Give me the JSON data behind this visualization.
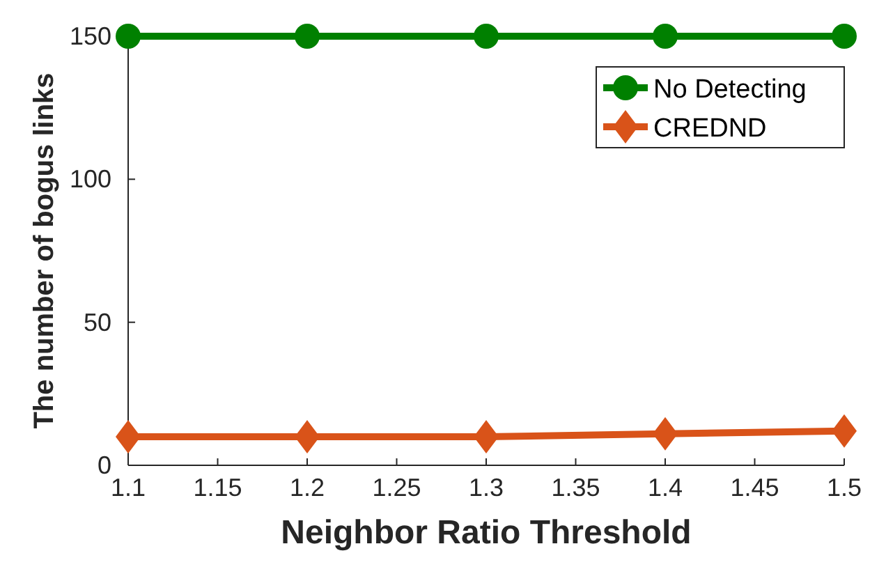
{
  "chart_data": {
    "type": "line",
    "xlabel": "Neighbor Ratio Threshold",
    "ylabel": "The number of bogus links",
    "x": [
      1.1,
      1.2,
      1.3,
      1.4,
      1.5
    ],
    "series": [
      {
        "name": "No Detecting",
        "color": "#008000",
        "values": [
          150,
          150,
          150,
          150,
          150
        ],
        "marker": "circle"
      },
      {
        "name": "CREDND",
        "color": "#d95319",
        "values": [
          10,
          10,
          10,
          11,
          12
        ],
        "marker": "diamond"
      }
    ],
    "xlim": [
      1.1,
      1.5
    ],
    "xticks": [
      {
        "value": 1.1,
        "label": "1.1"
      },
      {
        "value": 1.15,
        "label": "1.15"
      },
      {
        "value": 1.2,
        "label": "1.2"
      },
      {
        "value": 1.25,
        "label": "1.25"
      },
      {
        "value": 1.3,
        "label": "1.3"
      },
      {
        "value": 1.35,
        "label": "1.35"
      },
      {
        "value": 1.4,
        "label": "1.4"
      },
      {
        "value": 1.45,
        "label": "1.45"
      },
      {
        "value": 1.5,
        "label": "1.5"
      }
    ],
    "ylim": [
      0,
      150
    ],
    "yticks": [
      0,
      50,
      100,
      150
    ],
    "legend": "top right",
    "line_style": "solid",
    "grid": false
  }
}
